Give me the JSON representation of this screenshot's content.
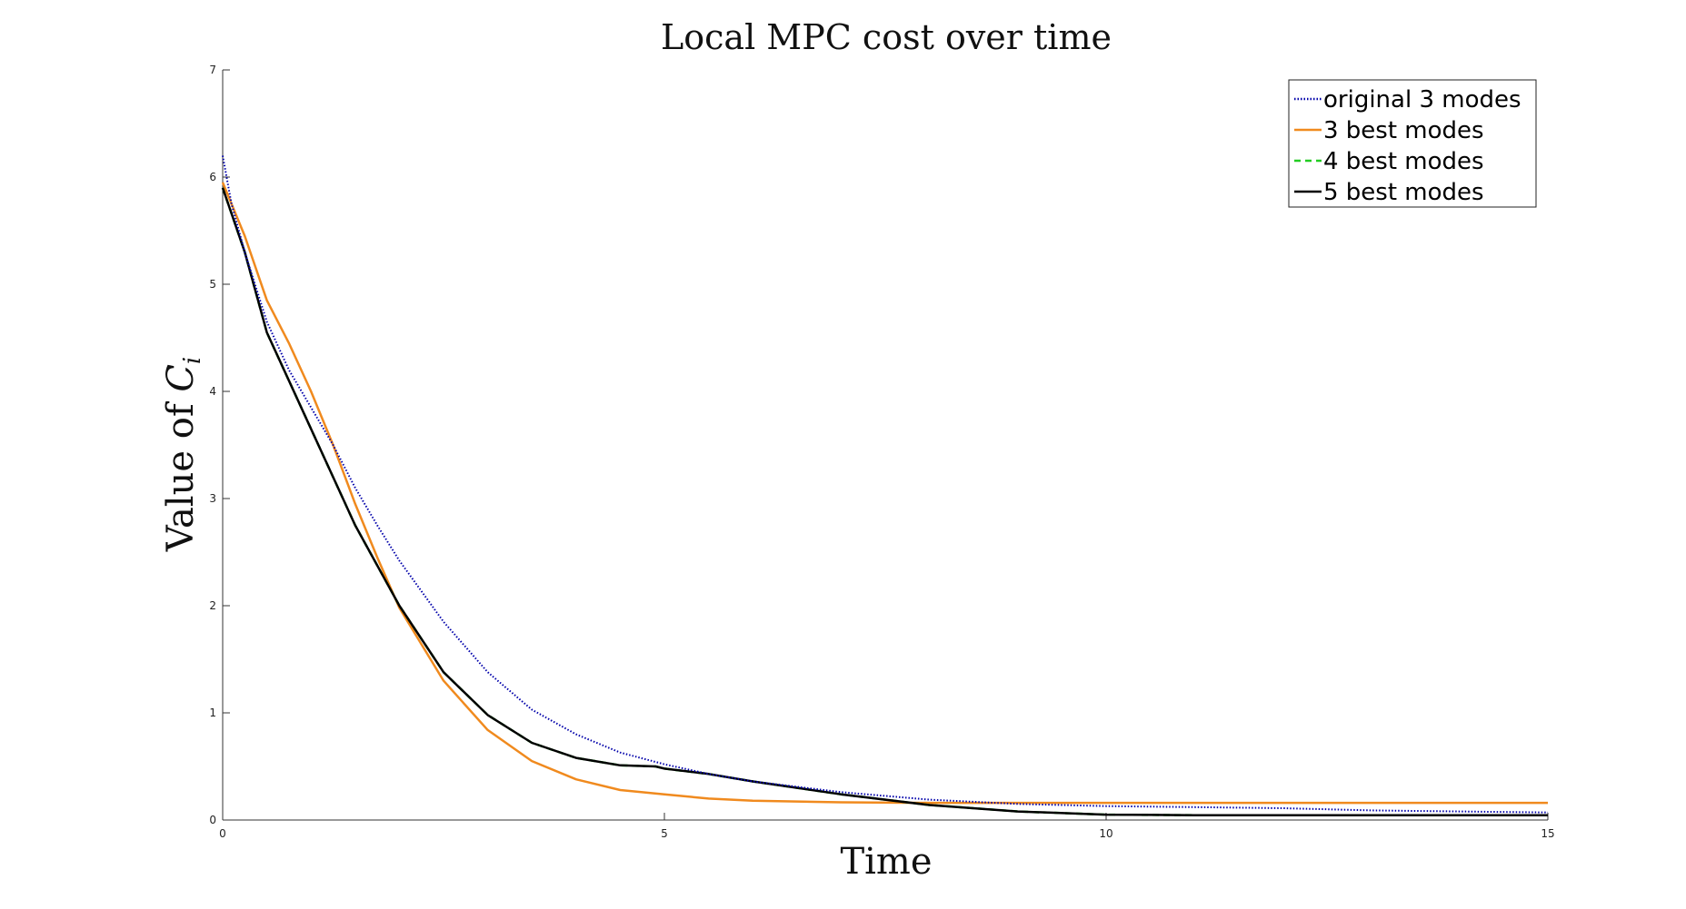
{
  "chart_data": {
    "type": "line",
    "title": "Local MPC cost over time",
    "xlabel": "Time",
    "ylabel": "Value of Ci",
    "xlim": [
      0,
      15
    ],
    "ylim": [
      0,
      7
    ],
    "x_ticks": [
      "0",
      "5",
      "10",
      "15"
    ],
    "y_ticks": [
      "0",
      "1",
      "2",
      "3",
      "4",
      "5",
      "6",
      "7"
    ],
    "grid": false,
    "legend_position": "top-right",
    "series": [
      {
        "name": "original 3 modes",
        "color": "#0000aa",
        "style": "dotted",
        "x": [
          0,
          0.1,
          0.25,
          0.5,
          0.75,
          1.0,
          1.25,
          1.5,
          1.75,
          2.0,
          2.5,
          3.0,
          3.5,
          4.0,
          4.5,
          5.0,
          5.5,
          6.0,
          7.0,
          8.0,
          9.0,
          10.0,
          11.0,
          12.0,
          13.0,
          14.0,
          15.0
        ],
        "y": [
          6.2,
          5.75,
          5.3,
          4.65,
          4.2,
          3.85,
          3.5,
          3.1,
          2.75,
          2.42,
          1.85,
          1.38,
          1.03,
          0.8,
          0.63,
          0.52,
          0.43,
          0.36,
          0.26,
          0.19,
          0.15,
          0.13,
          0.12,
          0.11,
          0.09,
          0.08,
          0.07
        ]
      },
      {
        "name": "3 best modes",
        "color": "#f08a1e",
        "style": "solid",
        "x": [
          0,
          0.25,
          0.5,
          0.75,
          1.0,
          1.25,
          1.5,
          1.75,
          2.0,
          2.5,
          3.0,
          3.5,
          4.0,
          4.5,
          5.0,
          5.5,
          6.0,
          7.0,
          8.0,
          9.0,
          10.0,
          11.0,
          12.0,
          13.0,
          14.0,
          15.0
        ],
        "y": [
          5.95,
          5.45,
          4.85,
          4.45,
          4.0,
          3.5,
          2.95,
          2.45,
          1.98,
          1.3,
          0.84,
          0.55,
          0.38,
          0.28,
          0.24,
          0.2,
          0.18,
          0.165,
          0.16,
          0.16,
          0.16,
          0.16,
          0.16,
          0.16,
          0.16,
          0.16
        ]
      },
      {
        "name": "4 best modes",
        "color": "#22cc22",
        "style": "dashed",
        "x": [
          0,
          0.25,
          0.5,
          0.75,
          1.0,
          1.5,
          2.0,
          2.5,
          3.0,
          3.5,
          4.0,
          4.5,
          4.9,
          5.0,
          5.5,
          6.0,
          7.0,
          8.0,
          9.0,
          10.0,
          11.0,
          12.0,
          13.0,
          14.0,
          15.0
        ],
        "y": [
          5.9,
          5.3,
          4.55,
          4.1,
          3.65,
          2.75,
          2.0,
          1.38,
          0.98,
          0.72,
          0.58,
          0.51,
          0.5,
          0.48,
          0.43,
          0.36,
          0.24,
          0.14,
          0.08,
          0.05,
          0.045,
          0.045,
          0.045,
          0.045,
          0.045
        ]
      },
      {
        "name": "5 best modes",
        "color": "#000000",
        "style": "solid",
        "x": [
          0,
          0.25,
          0.5,
          0.75,
          1.0,
          1.5,
          2.0,
          2.5,
          3.0,
          3.5,
          4.0,
          4.5,
          4.9,
          5.0,
          5.5,
          6.0,
          7.0,
          8.0,
          9.0,
          10.0,
          11.0,
          12.0,
          13.0,
          14.0,
          15.0
        ],
        "y": [
          5.9,
          5.3,
          4.55,
          4.1,
          3.65,
          2.75,
          2.0,
          1.38,
          0.98,
          0.72,
          0.58,
          0.51,
          0.5,
          0.48,
          0.43,
          0.36,
          0.24,
          0.14,
          0.08,
          0.05,
          0.045,
          0.045,
          0.045,
          0.045,
          0.045
        ]
      }
    ]
  }
}
